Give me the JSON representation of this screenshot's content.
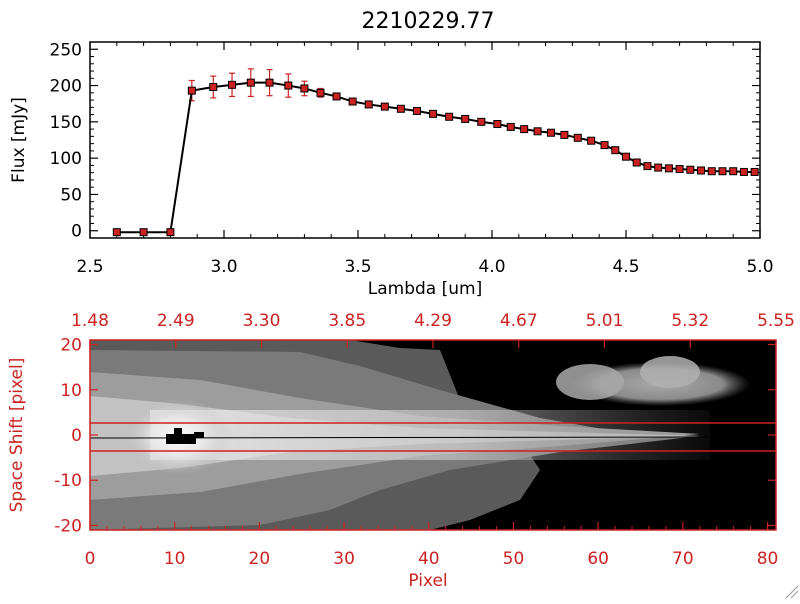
{
  "chart_data": [
    {
      "type": "line",
      "title": "2210229.77",
      "xlabel": "Lambda [um]",
      "ylabel": "Flux [mJy]",
      "xlim": [
        2.5,
        5.0
      ],
      "ylim": [
        -10,
        260
      ],
      "x_ticks": [
        "2.5",
        "3.0",
        "3.5",
        "4.0",
        "4.5",
        "5.0"
      ],
      "y_ticks": [
        "0",
        "50",
        "100",
        "150",
        "200",
        "250"
      ],
      "colors": {
        "line": "#000000",
        "markers": "#cc2222",
        "errorbars": "#cc2222"
      },
      "series": [
        {
          "x": [
            2.6,
            2.7,
            2.8,
            2.88,
            2.96,
            3.03,
            3.1,
            3.17,
            3.24,
            3.3,
            3.36,
            3.42,
            3.48,
            3.54,
            3.6,
            3.66,
            3.72,
            3.78,
            3.84,
            3.9,
            3.96,
            4.02,
            4.07,
            4.12,
            4.17,
            4.22,
            4.27,
            4.32,
            4.37,
            4.42,
            4.46,
            4.5,
            4.54,
            4.58,
            4.62,
            4.66,
            4.7,
            4.74,
            4.78,
            4.82,
            4.86,
            4.9,
            4.94,
            4.98
          ],
          "y": [
            -2,
            -2,
            -2,
            193,
            198,
            201,
            204,
            204,
            200,
            196,
            190,
            185,
            178,
            174,
            171,
            168,
            165,
            161,
            157,
            154,
            150,
            147,
            143,
            140,
            137,
            135,
            132,
            128,
            124,
            118,
            111,
            102,
            94,
            89,
            87,
            86,
            85,
            84,
            83,
            82,
            82,
            82,
            81,
            81
          ],
          "err": [
            0,
            0,
            0,
            14,
            15,
            16,
            19,
            18,
            16,
            10,
            6,
            4,
            3,
            2,
            2,
            2,
            2,
            2,
            2,
            2,
            2,
            2,
            2,
            2,
            2,
            2,
            2,
            2,
            2,
            2,
            2,
            2,
            2,
            2,
            2,
            2,
            2,
            2,
            2,
            2,
            2,
            2,
            2,
            2
          ]
        }
      ]
    },
    {
      "type": "heatmap",
      "xlabel": "Pixel",
      "ylabel": "Space Shift [pixel]",
      "xlim": [
        0,
        81
      ],
      "ylim": [
        -21,
        21
      ],
      "x_ticks": [
        "0",
        "10",
        "20",
        "30",
        "40",
        "50",
        "60",
        "70",
        "80"
      ],
      "y_ticks": [
        "-20",
        "-10",
        "0",
        "10",
        "20"
      ],
      "top_axis_ticks": [
        "1.48",
        "2.49",
        "3.30",
        "3.85",
        "4.29",
        "4.67",
        "5.01",
        "5.32",
        "5.55"
      ],
      "colormap": "grayscale",
      "extraction_window": [
        -3,
        3
      ],
      "colors": {
        "axes": "#cc2222",
        "window": "#cc2222",
        "trace": "#000000"
      }
    }
  ]
}
